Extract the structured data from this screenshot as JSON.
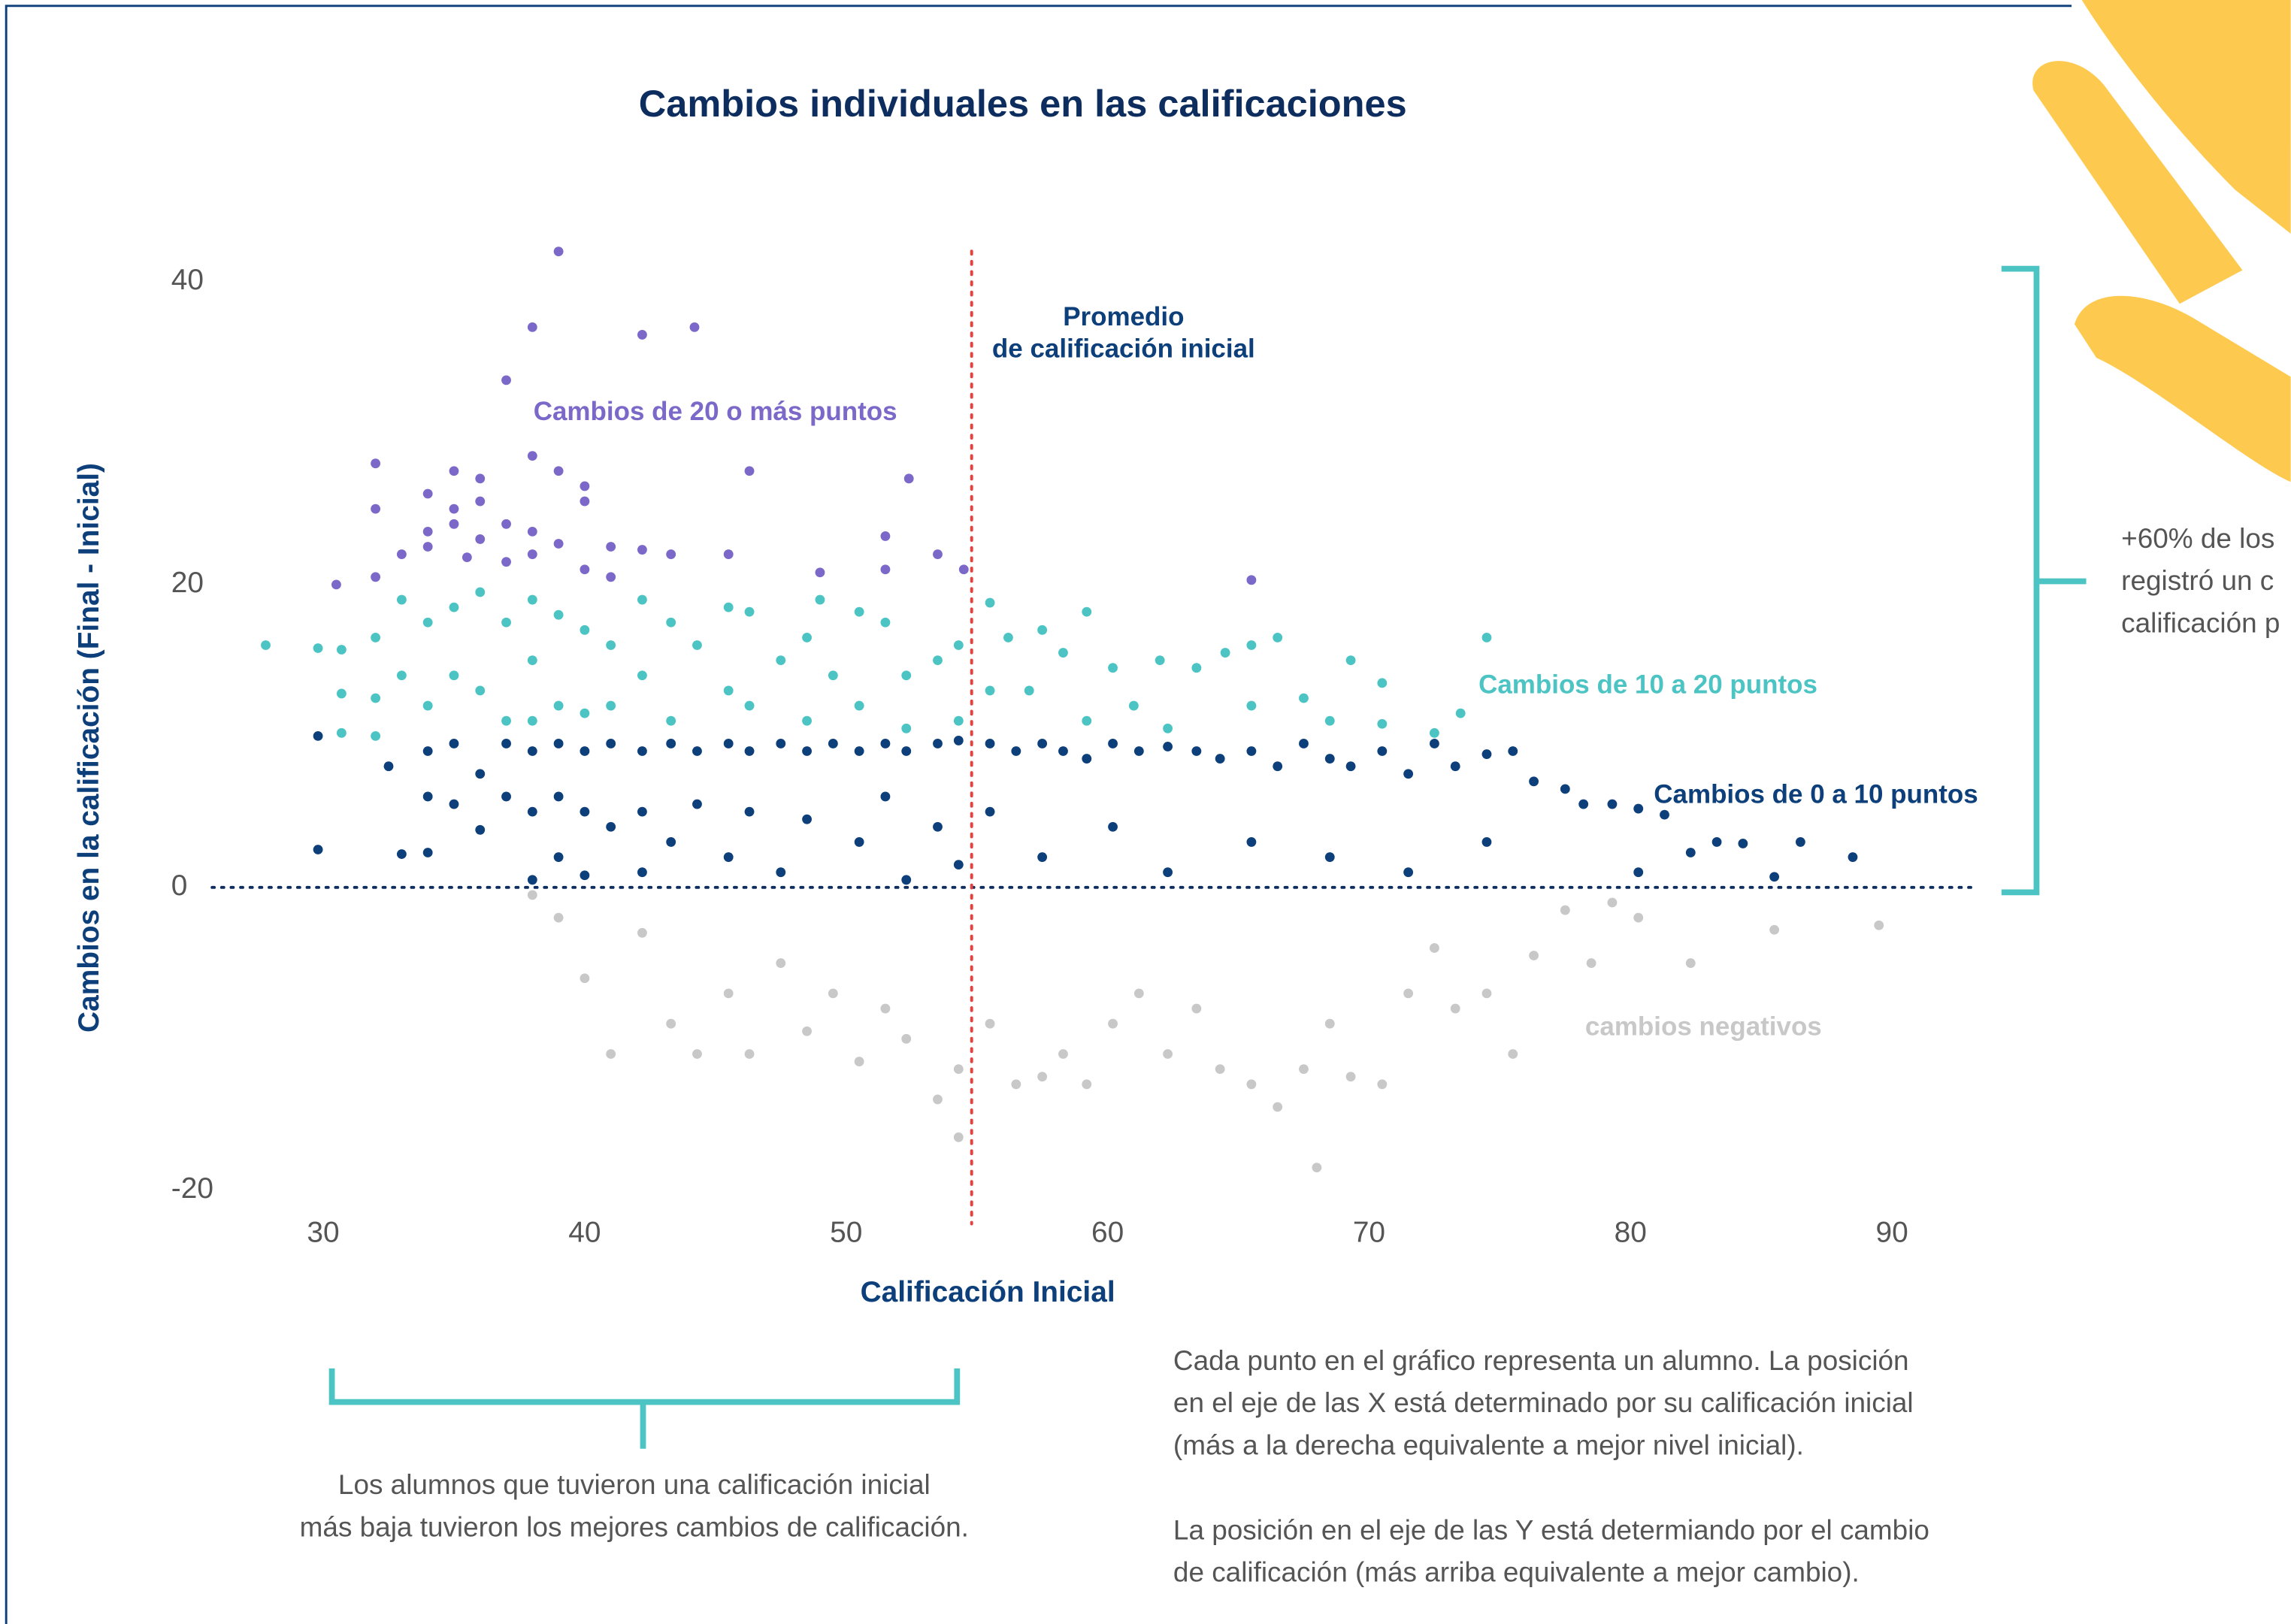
{
  "chart_data": {
    "type": "scatter",
    "title": "Cambios individuales en las calificaciones",
    "x_label": "Calificación Inicial",
    "y_label": "Cambios en la calificación (Final - Inicial)",
    "xlim": [
      25.75,
      93.07
    ],
    "ylim": [
      -20,
      42.5
    ],
    "xticks": [
      30,
      40,
      50,
      60,
      70,
      80,
      90
    ],
    "yticks": [
      40,
      20,
      0,
      -20
    ],
    "reference_x": 54.8,
    "reference_label": [
      "Promedio",
      "de calificación inicial"
    ],
    "series": [
      {
        "name": "Cambios de 20 o más puntos",
        "color": "#7b68c8",
        "x": [
          39,
          38,
          42.2,
          44.2,
          37,
          32,
          35,
          36,
          38,
          39,
          40,
          46.3,
          52.4,
          34,
          35,
          36,
          37,
          40,
          32,
          34,
          35,
          36,
          38,
          39,
          41,
          42.2,
          43.3,
          45.5,
          51.5,
          53.5,
          33,
          34,
          35.5,
          37,
          38,
          40,
          41,
          49,
          51.5,
          54.5,
          65.5,
          30.5,
          32
        ],
        "values": [
          42,
          37,
          36.5,
          37,
          33.5,
          28,
          27.5,
          27,
          28.5,
          27.5,
          26.5,
          27.5,
          27,
          26,
          25,
          25.5,
          24,
          25.5,
          25,
          23.5,
          24,
          23,
          23.5,
          22.7,
          22.5,
          22.3,
          22,
          22,
          23.2,
          22,
          22,
          22.5,
          21.8,
          21.5,
          22,
          21,
          20.5,
          20.8,
          21,
          21,
          20.3,
          20,
          20.5
        ]
      },
      {
        "name": "Cambios de 10 a 20 puntos",
        "color": "#4cc4c4",
        "x": [
          27.8,
          29.8,
          30.7,
          30.7,
          30.7,
          32,
          32,
          32,
          33,
          33,
          34,
          34,
          35,
          35,
          36,
          36,
          37,
          37,
          38,
          38,
          38,
          39,
          39,
          40,
          40,
          41,
          41,
          42.2,
          42.2,
          43.3,
          43.3,
          44.3,
          45.5,
          45.5,
          46.3,
          46.3,
          47.5,
          48.5,
          48.5,
          49,
          49.5,
          50.5,
          50.5,
          51.5,
          52.3,
          52.3,
          53.5,
          54.3,
          54.3,
          55.5,
          55.5,
          56.2,
          57,
          57.5,
          58.3,
          59.2,
          59.2,
          60.2,
          61,
          62,
          62.3,
          63.4,
          64.5,
          65.5,
          65.5,
          66.5,
          67.5,
          68.5,
          69.3,
          70.5,
          70.5,
          72.5,
          73.5,
          74.5
        ],
        "values": [
          16,
          15.8,
          15.7,
          12.8,
          10.2,
          16.5,
          12.5,
          10,
          19,
          14,
          17.5,
          12,
          18.5,
          14,
          19.5,
          13,
          17.5,
          11,
          19,
          15,
          11,
          18,
          12,
          17,
          11.5,
          16,
          12,
          19,
          14,
          17.5,
          11,
          16,
          18.5,
          13,
          18.2,
          12,
          15,
          16.5,
          11,
          19,
          14,
          18.2,
          12,
          17.5,
          14,
          10.5,
          15,
          16,
          11,
          18.8,
          13,
          16.5,
          13,
          17,
          15.5,
          18.2,
          11,
          14.5,
          12,
          15,
          10.5,
          14.5,
          15.5,
          16,
          12,
          16.5,
          12.5,
          11,
          15,
          13.5,
          10.8,
          10.2,
          11.5,
          16.5
        ]
      },
      {
        "name": "Cambios de 0 a 10 puntos",
        "color": "#0d3f7a",
        "x": [
          29.8,
          29.8,
          32.5,
          33,
          34,
          34,
          34,
          35,
          35,
          36,
          36,
          37,
          37,
          38,
          38,
          38,
          39,
          39,
          39,
          40,
          40,
          40,
          41,
          41,
          42.2,
          42.2,
          42.2,
          43.3,
          43.3,
          44.3,
          44.3,
          45.5,
          45.5,
          46.3,
          46.3,
          47.5,
          47.5,
          48.5,
          48.5,
          49.5,
          50.5,
          50.5,
          51.5,
          51.5,
          52.3,
          52.3,
          53.5,
          53.5,
          54.3,
          54.3,
          55.5,
          55.5,
          56.5,
          57.5,
          57.5,
          58.3,
          59.2,
          60.2,
          60.2,
          61.2,
          62.3,
          62.3,
          63.4,
          64.3,
          65.5,
          65.5,
          66.5,
          67.5,
          68.5,
          68.5,
          69.3,
          70.5,
          71.5,
          71.5,
          72.5,
          73.3,
          74.5,
          74.5,
          75.5,
          76.3,
          77.5,
          78.2,
          79.3,
          80.3,
          80.3,
          81.3,
          82.3,
          83.3,
          84.3,
          85.5,
          86.5,
          88.5
        ],
        "values": [
          10,
          2.5,
          8,
          2.2,
          9,
          6,
          2.3,
          9.5,
          5.5,
          7.5,
          3.8,
          9.5,
          6,
          9,
          5,
          0.5,
          9.5,
          6,
          2,
          9,
          5,
          0.8,
          9.5,
          4,
          9,
          5,
          1,
          9.5,
          3,
          9,
          5.5,
          9.5,
          2,
          9,
          5,
          9.5,
          1,
          9,
          4.5,
          9.5,
          9,
          3,
          9.5,
          6,
          9,
          0.5,
          9.5,
          4,
          9.7,
          1.5,
          9.5,
          5,
          9,
          9.5,
          2,
          9,
          8.5,
          9.5,
          4,
          9,
          9.3,
          1,
          9,
          8.5,
          9,
          3,
          8,
          9.5,
          8.5,
          2,
          8,
          9,
          7.5,
          1,
          9.5,
          8,
          8.8,
          3,
          9,
          7,
          6.5,
          5.5,
          5.5,
          5.2,
          1,
          4.8,
          2.3,
          3,
          2.9,
          0.7,
          3,
          2
        ]
      },
      {
        "name": "cambios negativos",
        "color": "#c8c8c8",
        "x": [
          38,
          39,
          40,
          41,
          42.2,
          43.3,
          44.3,
          45.5,
          46.3,
          47.5,
          48.5,
          49.5,
          50.5,
          51.5,
          52.3,
          53.5,
          54.3,
          54.3,
          55.5,
          56.5,
          57.5,
          58.3,
          59.2,
          60.2,
          61.2,
          62.3,
          63.4,
          64.3,
          65.5,
          66.5,
          67.5,
          68,
          68.5,
          69.3,
          70.5,
          71.5,
          72.5,
          73.3,
          74.5,
          75.5,
          76.3,
          77.5,
          78.5,
          79.3,
          80.3,
          82.3,
          85.5,
          89.5
        ],
        "values": [
          -0.5,
          -2,
          -6,
          -11,
          -3,
          -9,
          -11,
          -7,
          -11,
          -5,
          -9.5,
          -7,
          -11.5,
          -8,
          -10,
          -14,
          -16.5,
          -12,
          -9,
          -13,
          -12.5,
          -11,
          -13,
          -9,
          -7,
          -11,
          -8,
          -12,
          -13,
          -14.5,
          -12,
          -18.5,
          -9,
          -12.5,
          -13,
          -7,
          -4,
          -8,
          -7,
          -11,
          -4.5,
          -1.5,
          -5,
          -1,
          -2,
          -5,
          -2.8,
          -2.5
        ]
      }
    ]
  },
  "side_note": [
    "+60% de los",
    "registró un c",
    "calificación p"
  ],
  "bracket_caption": [
    "Los alumnos que tuvieron una calificación inicial",
    "más baja tuvieron los mejores cambios de calificación."
  ],
  "notes": [
    [
      "Cada punto en el gráfico representa un alumno. La posición",
      "en el eje de las X está determinado por su calificación inicial",
      "(más a la derecha equivalente a mejor nivel inicial)."
    ],
    [
      "La posición en el eje de las Y está determiando por el cambio",
      "de calificación (más arriba equivalente a mejor cambio)."
    ]
  ]
}
